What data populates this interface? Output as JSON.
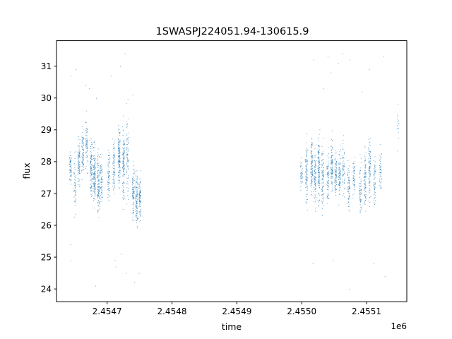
{
  "chart_data": {
    "type": "scatter",
    "title": "1SWASPJ224051.94-130615.9",
    "xlabel": "time",
    "ylabel": "flux",
    "x_offset_label": "1e6",
    "xlim": [
      2454622,
      2455162
    ],
    "ylim": [
      23.6,
      31.8
    ],
    "x_ticks": [
      {
        "value": 2454700,
        "label": "2.4547"
      },
      {
        "value": 2454800,
        "label": "2.4548"
      },
      {
        "value": 2454900,
        "label": "2.4549"
      },
      {
        "value": 2455000,
        "label": "2.4550"
      },
      {
        "value": 2455100,
        "label": "2.4551"
      }
    ],
    "y_ticks": [
      {
        "value": 24,
        "label": "24"
      },
      {
        "value": 25,
        "label": "25"
      },
      {
        "value": 26,
        "label": "26"
      },
      {
        "value": 27,
        "label": "27"
      },
      {
        "value": 28,
        "label": "28"
      },
      {
        "value": 29,
        "label": "29"
      },
      {
        "value": 30,
        "label": "30"
      },
      {
        "value": 31,
        "label": "31"
      }
    ],
    "grid": false,
    "marker_color": "#1f77b4",
    "series": [
      {
        "note_points": "dense observation nights; each entry is [x, center flux, spread, n points]",
        "clusters": [
          [
            2454643,
            27.8,
            0.3,
            60
          ],
          [
            2454650,
            27.3,
            0.6,
            50
          ],
          [
            2454656,
            28.0,
            0.45,
            90
          ],
          [
            2454662,
            28.3,
            0.5,
            80
          ],
          [
            2454668,
            28.6,
            0.5,
            70
          ],
          [
            2454675,
            27.8,
            0.55,
            110
          ],
          [
            2454680,
            27.5,
            0.6,
            130
          ],
          [
            2454686,
            27.3,
            0.6,
            120
          ],
          [
            2454691,
            27.4,
            0.45,
            60
          ],
          [
            2454702,
            27.6,
            0.45,
            70
          ],
          [
            2454710,
            27.9,
            0.6,
            80
          ],
          [
            2454718,
            28.2,
            0.65,
            130
          ],
          [
            2454725,
            27.9,
            0.7,
            120
          ],
          [
            2454731,
            28.2,
            0.85,
            80
          ],
          [
            2454740,
            27.1,
            0.5,
            90
          ],
          [
            2454745,
            26.9,
            0.55,
            110
          ],
          [
            2454750,
            26.8,
            0.5,
            90
          ],
          [
            2454999,
            27.6,
            0.25,
            40
          ],
          [
            2455007,
            27.6,
            0.6,
            90
          ],
          [
            2455015,
            27.9,
            0.55,
            110
          ],
          [
            2455020,
            27.5,
            0.55,
            90
          ],
          [
            2455026,
            27.8,
            0.7,
            120
          ],
          [
            2455032,
            27.5,
            0.6,
            90
          ],
          [
            2455040,
            27.5,
            0.5,
            70
          ],
          [
            2455046,
            27.9,
            0.5,
            100
          ],
          [
            2455052,
            27.6,
            0.45,
            80
          ],
          [
            2455058,
            27.6,
            0.55,
            80
          ],
          [
            2455064,
            27.8,
            0.55,
            60
          ],
          [
            2455072,
            27.2,
            0.45,
            70
          ],
          [
            2455080,
            27.5,
            0.4,
            50
          ],
          [
            2455090,
            27.1,
            0.5,
            70
          ],
          [
            2455097,
            27.5,
            0.6,
            90
          ],
          [
            2455104,
            27.8,
            0.6,
            90
          ],
          [
            2455112,
            27.4,
            0.45,
            60
          ],
          [
            2455121,
            27.8,
            0.5,
            50
          ],
          [
            2455148,
            29.0,
            0.5,
            15
          ]
        ],
        "outliers": [
          [
            2454643,
            30.7
          ],
          [
            2454644,
            25.4
          ],
          [
            2454644,
            24.9
          ],
          [
            2454652,
            30.9
          ],
          [
            2454667,
            30.4
          ],
          [
            2454672,
            30.3
          ],
          [
            2454682,
            24.1
          ],
          [
            2454683,
            30.0
          ],
          [
            2454706,
            30.7
          ],
          [
            2454712,
            24.9
          ],
          [
            2454713,
            24.7
          ],
          [
            2454720,
            31.0
          ],
          [
            2454721,
            25.1
          ],
          [
            2454727,
            31.4
          ],
          [
            2454729,
            24.5
          ],
          [
            2454742,
            24.2
          ],
          [
            2454749,
            24.5
          ],
          [
            2454739,
            30.1
          ],
          [
            2455017,
            24.8
          ],
          [
            2455018,
            31.2
          ],
          [
            2455033,
            30.3
          ],
          [
            2455040,
            31.3
          ],
          [
            2455045,
            30.8
          ],
          [
            2455048,
            24.9
          ],
          [
            2455056,
            31.1
          ],
          [
            2455063,
            31.4
          ],
          [
            2455073,
            24.0
          ],
          [
            2455074,
            31.2
          ],
          [
            2455104,
            30.9
          ],
          [
            2455111,
            24.8
          ],
          [
            2455126,
            31.3
          ],
          [
            2455128,
            24.4
          ],
          [
            2455093,
            30.2
          ]
        ]
      }
    ]
  }
}
